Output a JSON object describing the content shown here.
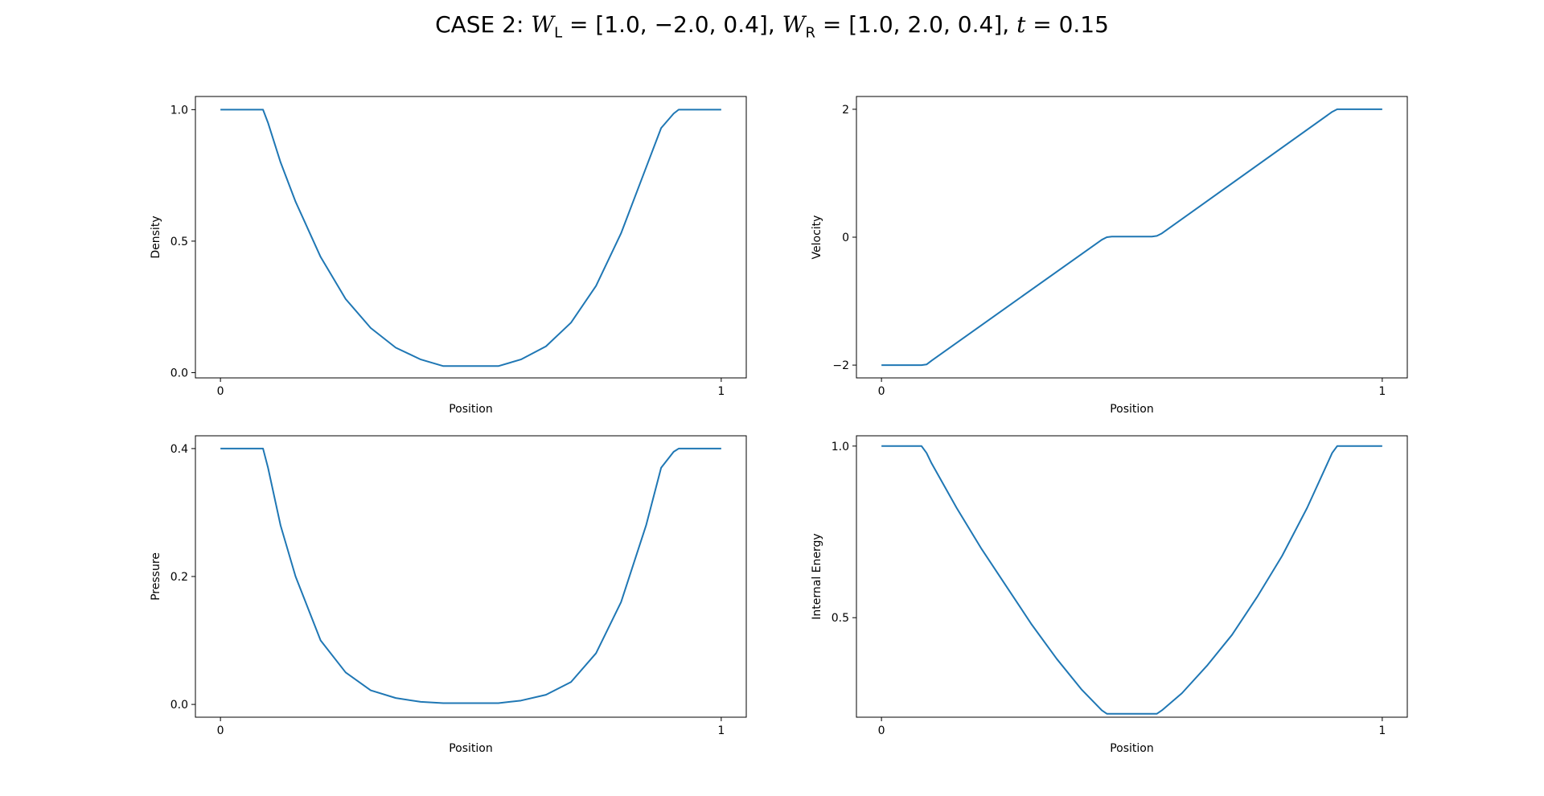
{
  "figure": {
    "title_prefix": "CASE 2: ",
    "title_wl_sym": "W",
    "title_wl_sub": "L",
    "title_wl_val": " = [1.0, −2.0, 0.4], ",
    "title_wr_sym": "W",
    "title_wr_sub": "R",
    "title_wr_val": " = [1.0, 2.0, 0.4], ",
    "title_t_sym": "t",
    "title_t_val": " = 0.15"
  },
  "colors": {
    "series": "#1f77b4",
    "axes": "#000000"
  },
  "chart_data": [
    {
      "type": "line",
      "xlabel": "Position",
      "ylabel": "Density",
      "xlim": [
        -0.05,
        1.05
      ],
      "ylim": [
        -0.02,
        1.05
      ],
      "xticks": [
        0,
        1
      ],
      "xtick_labels": [
        "0",
        "1"
      ],
      "yticks": [
        0,
        0.5,
        1
      ],
      "ytick_labels": [
        "0.0",
        "0.5",
        "1.0"
      ],
      "grid": false,
      "series": [
        {
          "x": [
            0,
            0.085,
            0.095,
            0.12,
            0.15,
            0.2,
            0.25,
            0.3,
            0.35,
            0.4,
            0.445,
            0.555,
            0.6,
            0.65,
            0.7,
            0.75,
            0.8,
            0.85,
            0.88,
            0.905,
            0.915,
            1
          ],
          "y": [
            1.0,
            1.0,
            0.95,
            0.8,
            0.65,
            0.44,
            0.28,
            0.17,
            0.095,
            0.05,
            0.025,
            0.025,
            0.05,
            0.1,
            0.19,
            0.33,
            0.53,
            0.78,
            0.93,
            0.985,
            1.0,
            1.0
          ]
        }
      ]
    },
    {
      "type": "line",
      "xlabel": "Position",
      "ylabel": "Velocity",
      "xlim": [
        -0.05,
        1.05
      ],
      "ylim": [
        -2.2,
        2.2
      ],
      "xticks": [
        0,
        1
      ],
      "xtick_labels": [
        "0",
        "1"
      ],
      "yticks": [
        -2,
        0,
        2
      ],
      "ytick_labels": [
        "−2",
        "0",
        "2"
      ],
      "grid": false,
      "series": [
        {
          "x": [
            0,
            0.08,
            0.09,
            0.1,
            0.44,
            0.45,
            0.46,
            0.54,
            0.55,
            0.56,
            0.9,
            0.91,
            0.92,
            1
          ],
          "y": [
            -2.0,
            -2.0,
            -1.99,
            -1.93,
            -0.04,
            0.0,
            0.01,
            0.01,
            0.02,
            0.06,
            1.96,
            2.0,
            2.0,
            2.0
          ]
        }
      ]
    },
    {
      "type": "line",
      "xlabel": "Position",
      "ylabel": "Pressure",
      "xlim": [
        -0.05,
        1.05
      ],
      "ylim": [
        -0.02,
        0.42
      ],
      "xticks": [
        0,
        1
      ],
      "xtick_labels": [
        "0",
        "1"
      ],
      "yticks": [
        0,
        0.2,
        0.4
      ],
      "ytick_labels": [
        "0.0",
        "0.2",
        "0.4"
      ],
      "grid": false,
      "series": [
        {
          "x": [
            0,
            0.085,
            0.095,
            0.12,
            0.15,
            0.2,
            0.25,
            0.3,
            0.35,
            0.4,
            0.445,
            0.555,
            0.6,
            0.65,
            0.7,
            0.75,
            0.8,
            0.85,
            0.88,
            0.905,
            0.915,
            1
          ],
          "y": [
            0.4,
            0.4,
            0.37,
            0.28,
            0.2,
            0.1,
            0.05,
            0.022,
            0.01,
            0.004,
            0.002,
            0.002,
            0.006,
            0.015,
            0.035,
            0.08,
            0.16,
            0.28,
            0.37,
            0.395,
            0.4,
            0.4
          ]
        }
      ]
    },
    {
      "type": "line",
      "xlabel": "Position",
      "ylabel": "Internal Energy",
      "xlim": [
        -0.05,
        1.05
      ],
      "ylim": [
        0.21,
        1.03
      ],
      "xticks": [
        0,
        1
      ],
      "xtick_labels": [
        "0",
        "1"
      ],
      "yticks": [
        0.5,
        1
      ],
      "ytick_labels": [
        "0.5",
        "1.0"
      ],
      "grid": false,
      "series": [
        {
          "x": [
            0,
            0.08,
            0.09,
            0.1,
            0.15,
            0.2,
            0.25,
            0.3,
            0.35,
            0.4,
            0.44,
            0.45,
            0.55,
            0.56,
            0.6,
            0.65,
            0.7,
            0.75,
            0.8,
            0.85,
            0.9,
            0.91,
            1
          ],
          "y": [
            1.0,
            1.0,
            0.98,
            0.95,
            0.82,
            0.7,
            0.59,
            0.48,
            0.38,
            0.29,
            0.23,
            0.22,
            0.22,
            0.23,
            0.28,
            0.36,
            0.45,
            0.56,
            0.68,
            0.82,
            0.98,
            1.0,
            1.0
          ]
        }
      ]
    }
  ]
}
